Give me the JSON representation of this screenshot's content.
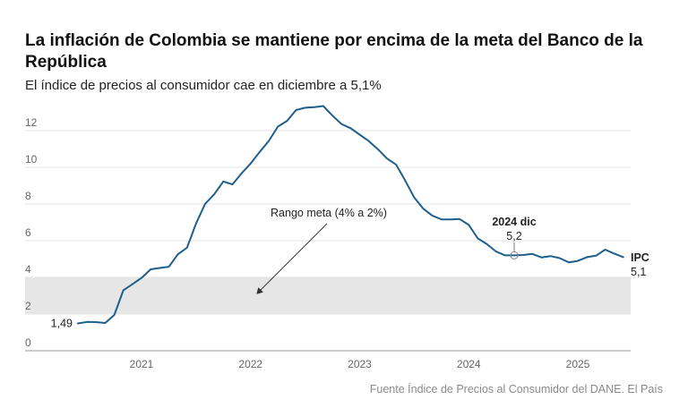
{
  "header": {
    "title": "La inflación de Colombia se mantiene por encima de la meta del Banco de la República",
    "subtitle": "El índice de precios al consumidor cae en diciembre a 5,1%"
  },
  "footer": {
    "source": "Fuente Índice de Precios al Consumidor del DANE. El País"
  },
  "chart_data": {
    "type": "line",
    "title": "La inflación de Colombia se mantiene por encima de la meta del Banco de la República",
    "subtitle": "El índice de precios al consumidor cae en diciembre a 5,1%",
    "xlabel": "",
    "ylabel": "",
    "ylim": [
      0,
      13.5
    ],
    "y_ticks": [
      "0",
      "2",
      "4",
      "6",
      "8",
      "10",
      "12"
    ],
    "x_ticks": [
      "2021",
      "2022",
      "2023",
      "2024",
      "2025"
    ],
    "grid": true,
    "band": {
      "label": "Rango meta (4% a 2%)",
      "from": 2,
      "to": 4,
      "color": "#e6e6e6"
    },
    "series": [
      {
        "name": "IPC",
        "color": "#1f5f8b",
        "x": [
          "2020-12",
          "2021-01",
          "2021-02",
          "2021-03",
          "2021-04",
          "2021-05",
          "2021-06",
          "2021-07",
          "2021-08",
          "2021-09",
          "2021-10",
          "2021-11",
          "2021-12",
          "2022-01",
          "2022-02",
          "2022-03",
          "2022-04",
          "2022-05",
          "2022-06",
          "2022-07",
          "2022-08",
          "2022-09",
          "2022-10",
          "2022-11",
          "2022-12",
          "2023-01",
          "2023-02",
          "2023-03",
          "2023-04",
          "2023-05",
          "2023-06",
          "2023-07",
          "2023-08",
          "2023-09",
          "2023-10",
          "2023-11",
          "2023-12",
          "2024-01",
          "2024-02",
          "2024-03",
          "2024-04",
          "2024-05",
          "2024-06",
          "2024-07",
          "2024-08",
          "2024-09",
          "2024-10",
          "2024-11",
          "2024-12",
          "2025-01",
          "2025-02",
          "2025-03",
          "2025-04",
          "2025-05",
          "2025-06",
          "2025-07",
          "2025-08",
          "2025-09",
          "2025-10",
          "2025-11",
          "2025-12"
        ],
        "values": [
          1.49,
          1.57,
          1.56,
          1.51,
          1.95,
          3.3,
          3.63,
          3.97,
          4.44,
          4.51,
          4.58,
          5.26,
          5.62,
          6.94,
          8.01,
          8.53,
          9.23,
          9.07,
          9.67,
          10.21,
          10.84,
          11.44,
          12.22,
          12.53,
          13.12,
          13.25,
          13.28,
          13.34,
          12.82,
          12.36,
          12.13,
          11.78,
          11.43,
          10.99,
          10.48,
          10.15,
          9.28,
          8.35,
          7.74,
          7.36,
          7.16,
          7.16,
          7.18,
          6.86,
          6.12,
          5.81,
          5.41,
          5.2,
          5.2,
          5.22,
          5.28,
          5.09,
          5.16,
          5.05,
          4.82,
          4.9,
          5.1,
          5.18,
          5.51,
          5.3,
          5.1
        ]
      }
    ],
    "annotations": {
      "start_value": "1,49",
      "highlight_period": "2024 dic",
      "highlight_value": "5,2",
      "end_label": "IPC",
      "end_value": "5,1",
      "band_label": "Rango meta (4% a 2%)"
    }
  }
}
